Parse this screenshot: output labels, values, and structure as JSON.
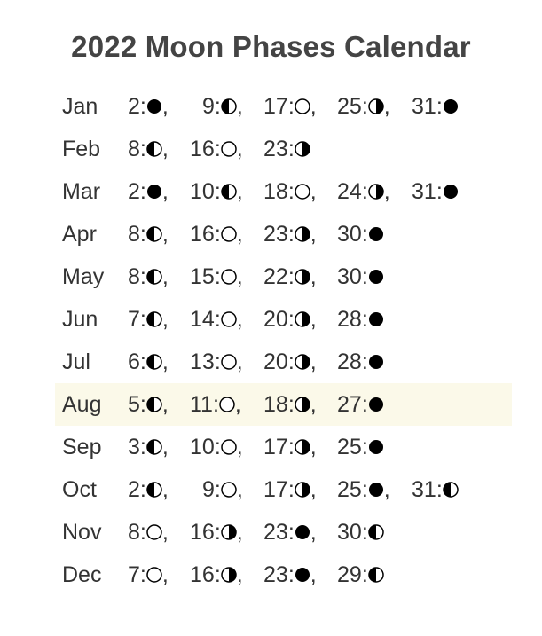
{
  "title": "2022 Moon Phases Calendar",
  "highlight_month": "Aug",
  "phase_legend": {
    "new": "new-moon-icon",
    "first": "first-quarter-moon-icon",
    "full": "full-moon-icon",
    "last": "last-quarter-moon-icon"
  },
  "months": [
    {
      "name": "Jan",
      "phases": [
        {
          "day": "2",
          "phase": "new"
        },
        {
          "day": "9",
          "phase": "first"
        },
        {
          "day": "17",
          "phase": "full"
        },
        {
          "day": "25",
          "phase": "last"
        },
        {
          "day": "31",
          "phase": "new"
        }
      ]
    },
    {
      "name": "Feb",
      "phases": [
        {
          "day": "8",
          "phase": "first"
        },
        {
          "day": "16",
          "phase": "full"
        },
        {
          "day": "23",
          "phase": "last"
        }
      ]
    },
    {
      "name": "Mar",
      "phases": [
        {
          "day": "2",
          "phase": "new"
        },
        {
          "day": "10",
          "phase": "first"
        },
        {
          "day": "18",
          "phase": "full"
        },
        {
          "day": "24",
          "phase": "last"
        },
        {
          "day": "31",
          "phase": "new"
        }
      ]
    },
    {
      "name": "Apr",
      "phases": [
        {
          "day": "8",
          "phase": "first"
        },
        {
          "day": "16",
          "phase": "full"
        },
        {
          "day": "23",
          "phase": "last"
        },
        {
          "day": "30",
          "phase": "new"
        }
      ]
    },
    {
      "name": "May",
      "phases": [
        {
          "day": "8",
          "phase": "first"
        },
        {
          "day": "15",
          "phase": "full"
        },
        {
          "day": "22",
          "phase": "last"
        },
        {
          "day": "30",
          "phase": "new"
        }
      ]
    },
    {
      "name": "Jun",
      "phases": [
        {
          "day": "7",
          "phase": "first"
        },
        {
          "day": "14",
          "phase": "full"
        },
        {
          "day": "20",
          "phase": "last"
        },
        {
          "day": "28",
          "phase": "new"
        }
      ]
    },
    {
      "name": "Jul",
      "phases": [
        {
          "day": "6",
          "phase": "first"
        },
        {
          "day": "13",
          "phase": "full"
        },
        {
          "day": "20",
          "phase": "last"
        },
        {
          "day": "28",
          "phase": "new"
        }
      ]
    },
    {
      "name": "Aug",
      "phases": [
        {
          "day": "5",
          "phase": "first"
        },
        {
          "day": "11",
          "phase": "full"
        },
        {
          "day": "18",
          "phase": "last"
        },
        {
          "day": "27",
          "phase": "new"
        }
      ]
    },
    {
      "name": "Sep",
      "phases": [
        {
          "day": "3",
          "phase": "first"
        },
        {
          "day": "10",
          "phase": "full"
        },
        {
          "day": "17",
          "phase": "last"
        },
        {
          "day": "25",
          "phase": "new"
        }
      ]
    },
    {
      "name": "Oct",
      "phases": [
        {
          "day": "2",
          "phase": "first"
        },
        {
          "day": "9",
          "phase": "full"
        },
        {
          "day": "17",
          "phase": "last"
        },
        {
          "day": "25",
          "phase": "new"
        },
        {
          "day": "31",
          "phase": "first"
        }
      ]
    },
    {
      "name": "Nov",
      "phases": [
        {
          "day": "8",
          "phase": "full"
        },
        {
          "day": "16",
          "phase": "last"
        },
        {
          "day": "23",
          "phase": "new"
        },
        {
          "day": "30",
          "phase": "first"
        }
      ]
    },
    {
      "name": "Dec",
      "phases": [
        {
          "day": "7",
          "phase": "full"
        },
        {
          "day": "16",
          "phase": "last"
        },
        {
          "day": "23",
          "phase": "new"
        },
        {
          "day": "29",
          "phase": "first"
        }
      ]
    }
  ]
}
